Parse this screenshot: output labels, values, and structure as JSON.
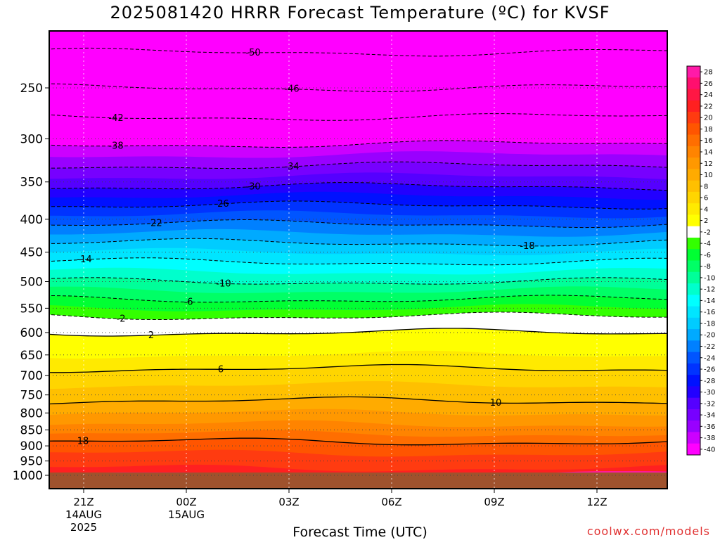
{
  "chart_data": {
    "type": "heatmap",
    "title": "2025081420 HRRR Forecast Temperature (ºC) for KVSF",
    "xlabel": "Forecast Time (UTC)",
    "ylabel": "",
    "y_axis": {
      "scale": "log-pressure",
      "ticks": [
        250,
        300,
        350,
        400,
        450,
        500,
        550,
        600,
        650,
        700,
        750,
        800,
        850,
        900,
        950,
        1000
      ],
      "range": [
        200,
        1000
      ]
    },
    "x_axis": {
      "ticks": [
        {
          "label": "21Z",
          "sub": [
            "14AUG",
            "2025"
          ],
          "hour": 21
        },
        {
          "label": "00Z",
          "sub": [
            "15AUG"
          ],
          "hour": 24
        },
        {
          "label": "03Z",
          "sub": [],
          "hour": 27
        },
        {
          "label": "06Z",
          "sub": [],
          "hour": 30
        },
        {
          "label": "09Z",
          "sub": [],
          "hour": 33
        },
        {
          "label": "12Z",
          "sub": [],
          "hour": 36
        }
      ],
      "range_hours": [
        20,
        38
      ]
    },
    "grid": true,
    "colorbar": {
      "labels": [
        28,
        26,
        24,
        22,
        20,
        18,
        16,
        14,
        12,
        10,
        8,
        6,
        4,
        2,
        -2,
        -4,
        -6,
        -8,
        -10,
        -12,
        -14,
        -16,
        -18,
        -20,
        -22,
        -24,
        -26,
        -28,
        -30,
        -32,
        -34,
        -36,
        -38,
        -40
      ],
      "colors": [
        "#ff1aa8",
        "#ff0f6e",
        "#ff1744",
        "#ff2020",
        "#ff3b10",
        "#ff5500",
        "#ff6e00",
        "#ff8400",
        "#ff9800",
        "#ffab00",
        "#ffc000",
        "#ffd500",
        "#ffea00",
        "#ffff00",
        "#ffffff",
        "#33ff00",
        "#00ff33",
        "#00ff66",
        "#00ff99",
        "#00ffcc",
        "#00ffff",
        "#00e5ff",
        "#00ccff",
        "#00aaff",
        "#0080ff",
        "#0055ff",
        "#0033ff",
        "#0011ff",
        "#2200ff",
        "#5500ff",
        "#7700ff",
        "#9900ff",
        "#cc00ff",
        "#ff00ff"
      ]
    },
    "isotherm_labels_c": [
      -50,
      -46,
      -42,
      -38,
      -34,
      -30,
      -26,
      -22,
      -18,
      -14,
      -10,
      -6,
      -2,
      2,
      6,
      10,
      18
    ],
    "temperature_profile_c": {
      "pressure_hpa": [
        200,
        250,
        300,
        350,
        400,
        450,
        500,
        550,
        600,
        650,
        700,
        750,
        800,
        850,
        900,
        950,
        1000
      ],
      "temperature_c": [
        -53,
        -46,
        -39,
        -31,
        -23,
        -16,
        -10,
        -4,
        2,
        4,
        7,
        9,
        12,
        15,
        19,
        21,
        23
      ]
    },
    "surface_pressure_hpa": 990,
    "freezing_level_hpa": 585
  },
  "credit": "coolwx.com/models"
}
